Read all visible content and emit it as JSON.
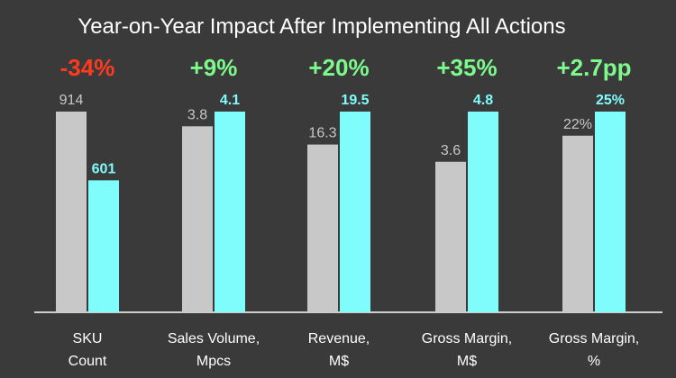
{
  "chart_data": {
    "type": "bar",
    "title": "Year-on-Year Impact After Implementing All Actions",
    "groups": [
      {
        "label_lines": [
          "SKU",
          "Count"
        ],
        "change": "-34%",
        "change_type": "negative",
        "before": 914,
        "after": 601,
        "before_label": "914",
        "after_label": "601"
      },
      {
        "label_lines": [
          "Sales Volume,",
          "Mpcs"
        ],
        "change": "+9%",
        "change_type": "positive",
        "before": 3.8,
        "after": 4.1,
        "before_label": "3.8",
        "after_label": "4.1"
      },
      {
        "label_lines": [
          "Revenue,",
          "M$"
        ],
        "change": "+20%",
        "change_type": "positive",
        "before": 16.3,
        "after": 19.5,
        "before_label": "16.3",
        "after_label": "19.5"
      },
      {
        "label_lines": [
          "Gross Margin,",
          "M$"
        ],
        "change": "+35%",
        "change_type": "positive",
        "before": 3.6,
        "after": 4.8,
        "before_label": "3.6",
        "after_label": "4.8"
      },
      {
        "label_lines": [
          "Gross Margin,",
          "%"
        ],
        "change": "+2.7pp",
        "change_type": "positive",
        "before": 22,
        "after": 25,
        "before_label": "22%",
        "after_label": "25%"
      }
    ],
    "colors": {
      "background": "#3a3a3a",
      "before_bar": "#c8c8c8",
      "after_bar": "#7ffcfc",
      "positive_change": "#7dfa8c",
      "negative_change": "#ff3b1f",
      "before_label": "#c8c8c8",
      "after_label": "#7ffcfc",
      "title": "#ffffff",
      "axis": "#ffffff",
      "category_label": "#ffffff"
    }
  }
}
